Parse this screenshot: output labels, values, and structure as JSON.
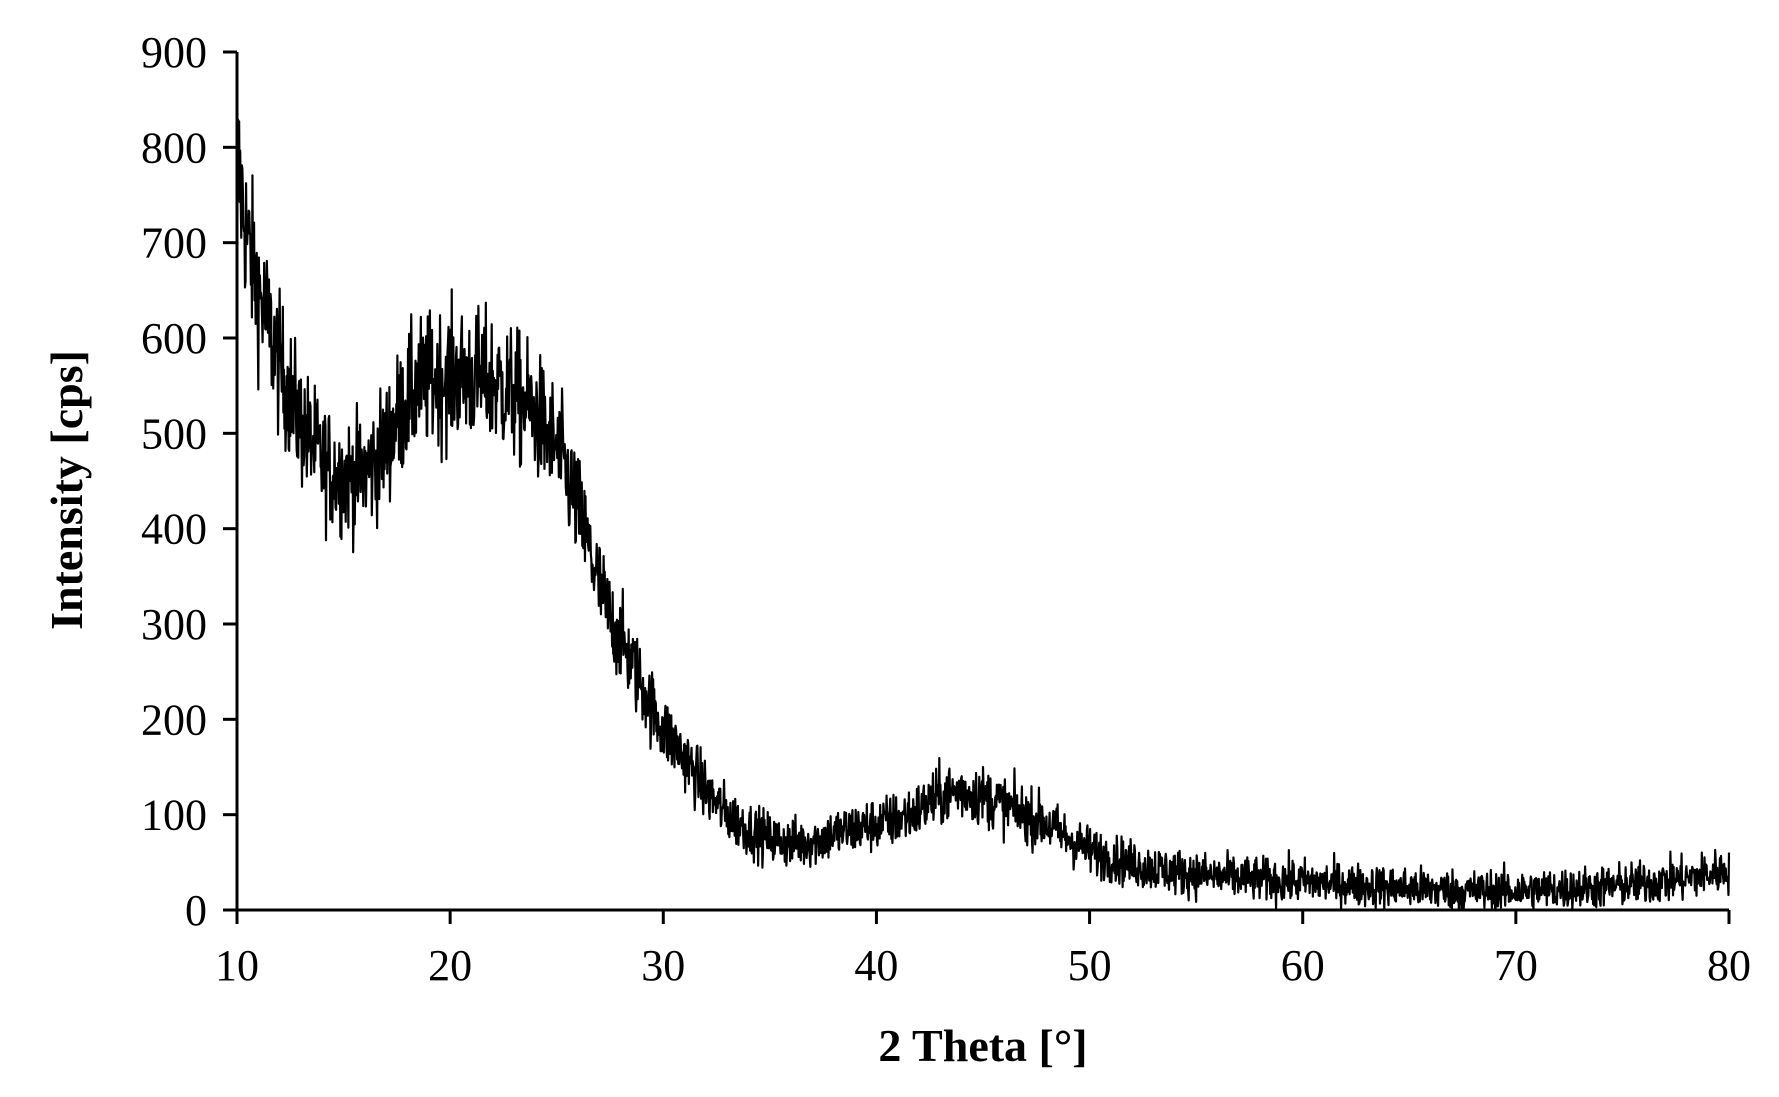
{
  "chart_data": {
    "type": "line",
    "title": "",
    "xlabel": "2 Theta [°]",
    "ylabel": "Intensity [cps]",
    "xlim": [
      10,
      80
    ],
    "ylim": [
      0,
      900
    ],
    "x_ticks": [
      "10",
      "20",
      "30",
      "40",
      "50",
      "60",
      "70",
      "80"
    ],
    "y_ticks": [
      "0",
      "100",
      "200",
      "300",
      "400",
      "500",
      "600",
      "700",
      "800",
      "900"
    ],
    "grid": false,
    "legend": "none",
    "line_color": "#000000",
    "series": [
      {
        "x": [
          10.0,
          10.5,
          11.0,
          11.5,
          12.0,
          12.5,
          13.0,
          13.5,
          14.0,
          14.5,
          15.0,
          15.5,
          16.0,
          16.5,
          17.0,
          17.5,
          18.0,
          18.5,
          19.0,
          19.5,
          20.0,
          21.0,
          22.0,
          23.0,
          24.0,
          25.0,
          25.5,
          26.0,
          26.5,
          27.0,
          27.5,
          28.0,
          28.5,
          29.0,
          29.5,
          30.0,
          31.0,
          32.0,
          33.0,
          34.0,
          35.0,
          36.0,
          37.0,
          38.0,
          39.0,
          40.0,
          41.0,
          42.0,
          43.0,
          44.0,
          45.0,
          46.0,
          47.0,
          48.0,
          49.0,
          50.0,
          52.0,
          54.0,
          56.0,
          58.0,
          60.0,
          62.0,
          64.0,
          66.0,
          68.0,
          70.0,
          72.0,
          74.0,
          76.0,
          78.0,
          80.0
        ],
        "y": [
          790,
          700,
          650,
          610,
          570,
          540,
          510,
          490,
          470,
          460,
          455,
          455,
          460,
          470,
          490,
          515,
          535,
          550,
          555,
          558,
          560,
          560,
          555,
          540,
          520,
          485,
          455,
          420,
          380,
          340,
          305,
          285,
          260,
          235,
          210,
          190,
          160,
          125,
          100,
          85,
          75,
          70,
          72,
          80,
          85,
          90,
          95,
          105,
          120,
          125,
          120,
          110,
          100,
          90,
          75,
          62,
          48,
          40,
          35,
          32,
          30,
          27,
          24,
          22,
          20,
          20,
          22,
          24,
          28,
          33,
          42
        ]
      }
    ]
  }
}
